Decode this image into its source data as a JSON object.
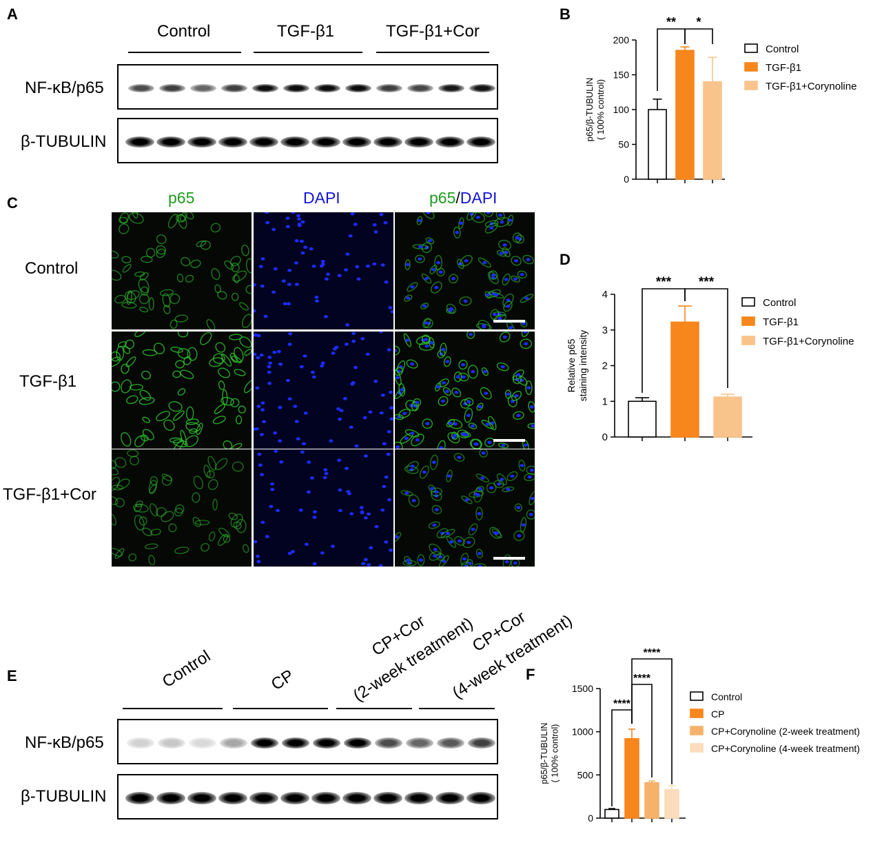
{
  "panels": {
    "a": "A",
    "b": "B",
    "c": "C",
    "d": "D",
    "e": "E",
    "f": "F"
  },
  "blot_a": {
    "groups": [
      "Control",
      "TGF-β1",
      "TGF-β1+Cor"
    ],
    "rows": [
      "NF-κB/p65",
      "β-TUBULIN"
    ]
  },
  "microscopy": {
    "columns": {
      "p65": "p65",
      "dapi": "DAPI",
      "merge_p65": "p65",
      "merge_slash": "/",
      "merge_dapi": "DAPI"
    },
    "rows": [
      "Control",
      "TGF-β1",
      "TGF-β1+Cor"
    ],
    "colors": {
      "p65": "#1f9b1f",
      "dapi": "#1414d8",
      "background": "#000000"
    }
  },
  "blot_e": {
    "groups": [
      "Control",
      "CP",
      "CP+Cor",
      "(2-week treatment)",
      "CP+Cor",
      "(4-week treatment)"
    ],
    "rows": [
      "NF-κB/p65",
      "β-TUBULIN"
    ]
  },
  "colors": {
    "control": "#ffffff",
    "tgf": "#f7861c",
    "cor": "#f9c48b",
    "cor_2wk": "#f6b26b",
    "cor_4wk": "#fbdcbc"
  },
  "chart_data": [
    {
      "id": "B",
      "type": "bar",
      "categories": [
        "Control",
        "TGF-β1",
        "TGF-β1+Corynoline"
      ],
      "values": [
        100,
        185,
        140
      ],
      "errors": [
        15,
        5,
        35
      ],
      "ylabel": "p65/β-TUBULIN\n( 100% control)",
      "ylim": [
        0,
        200
      ],
      "yticks": [
        "0",
        "50",
        "100",
        "150",
        "200"
      ],
      "legend": [
        "Control",
        "TGF-β1",
        "TGF-β1+Corynoline"
      ],
      "significance": [
        "**",
        "*"
      ],
      "grid": false,
      "legend_position": "right"
    },
    {
      "id": "D",
      "type": "bar",
      "categories": [
        "Control",
        "TGF-β1",
        "TGF-β1+Corynoline"
      ],
      "values": [
        1.0,
        3.22,
        1.12
      ],
      "errors": [
        0.1,
        0.45,
        0.08
      ],
      "ylabel": "Relative p65\nstaining intensity",
      "ylim": [
        0,
        4
      ],
      "yticks": [
        "0",
        "1",
        "2",
        "3",
        "4"
      ],
      "legend": [
        "Control",
        "TGF-β1",
        "TGF-β1+Corynoline"
      ],
      "significance": [
        "***",
        "***"
      ],
      "grid": false,
      "legend_position": "right"
    },
    {
      "id": "F",
      "type": "bar",
      "categories": [
        "Control",
        "CP",
        "CP+Corynoline (2-week treatment)",
        "CP+Corynoline (4-week treatment)"
      ],
      "values": [
        100,
        920,
        410,
        330
      ],
      "errors": [
        10,
        110,
        20,
        45
      ],
      "ylabel": "p65/β-TUBULIN\n( 100% control)",
      "ylim": [
        0,
        1500
      ],
      "yticks": [
        "0",
        "500",
        "1000",
        "1500"
      ],
      "legend": [
        "Control",
        "CP",
        "CP+Corynoline (2-week treatment)",
        "CP+Corynoline (4-week treatment)"
      ],
      "significance": [
        "****",
        "****",
        "****"
      ],
      "grid": false,
      "legend_position": "right"
    }
  ]
}
